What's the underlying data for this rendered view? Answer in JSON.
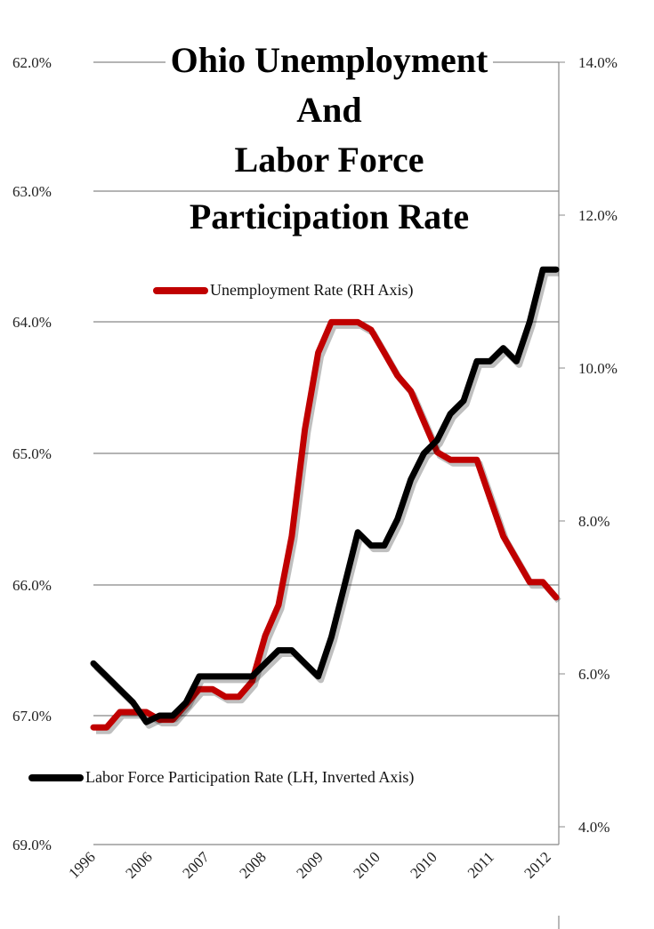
{
  "chart_data": {
    "type": "line",
    "title": "Ohio Unemployment And Labor Force Participation Rate",
    "title_lines": [
      "Ohio Unemployment",
      "And",
      "Labor Force",
      "Participation Rate"
    ],
    "x_tick_labels": [
      "1996",
      "2006",
      "2007",
      "2008",
      "2009",
      "2010",
      "2010",
      "2011",
      "2012"
    ],
    "left_axis": {
      "ticks": [
        "62.0%",
        "63.0%",
        "64.0%",
        "65.0%",
        "66.0%",
        "67.0%",
        "69.0%"
      ],
      "range": [
        62,
        69
      ],
      "inverted": true
    },
    "right_axis": {
      "ticks": [
        "14.0%",
        "12.0%",
        "10.0%",
        "8.0%",
        "6.0%",
        "4.0%"
      ],
      "range": [
        4,
        14
      ]
    },
    "grid": true,
    "series": [
      {
        "name": "Unemployment Rate (RH Axis)",
        "axis": "right",
        "color": "#c00000",
        "values": [
          5.3,
          5.3,
          5.5,
          5.5,
          5.5,
          5.4,
          5.4,
          5.6,
          5.8,
          5.8,
          5.7,
          5.7,
          5.9,
          6.5,
          6.9,
          7.8,
          9.2,
          10.2,
          10.6,
          10.6,
          10.6,
          10.5,
          10.2,
          9.9,
          9.7,
          9.3,
          8.9,
          8.8,
          8.8,
          8.8,
          8.3,
          7.8,
          7.5,
          7.2,
          7.2,
          7.0
        ]
      },
      {
        "name": "Labor Force Participation Rate (LH, Inverted Axis)",
        "axis": "left",
        "color": "#000000",
        "values": [
          66.6,
          66.7,
          66.8,
          66.9,
          67.1,
          67.0,
          67.0,
          66.9,
          66.7,
          66.7,
          66.7,
          66.7,
          66.7,
          66.6,
          66.5,
          66.5,
          66.6,
          66.7,
          66.4,
          66.0,
          65.6,
          65.7,
          65.7,
          65.5,
          65.2,
          65.0,
          64.9,
          64.7,
          64.6,
          64.3,
          64.3,
          64.2,
          64.3,
          64.0,
          63.6,
          63.6
        ]
      }
    ]
  }
}
